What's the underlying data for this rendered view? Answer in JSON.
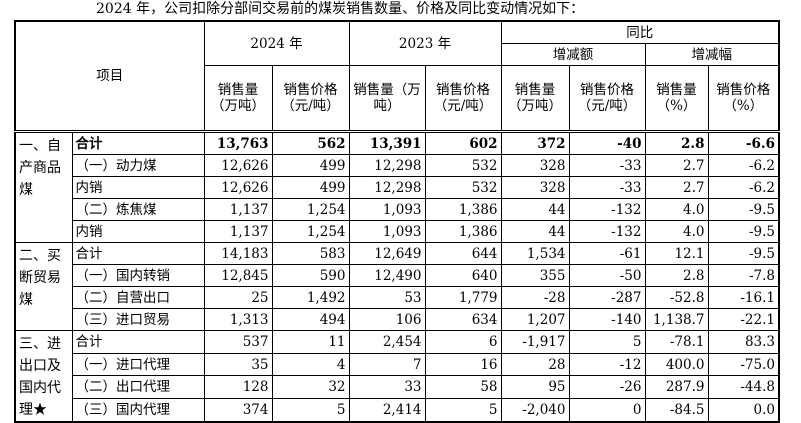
{
  "caption": "2024 年，公司扣除分部间交易前的煤炭销售数量、价格及同比变动情况如下：",
  "header": {
    "item": "项目",
    "y2024": "2024 年",
    "y2023": "2023 年",
    "yoy": "同比",
    "change_amount": "增减额",
    "change_rate": "增减幅",
    "sales_volume": "销售量（万吨）",
    "sales_price": "销售价格（元/吨）",
    "sales_volume_change": "销售量（万吨）",
    "sales_price_change": "销售价格（元/吨）",
    "volume_pct": "销售量（%）",
    "price_pct": "销售价格（%）"
  },
  "groups": [
    {
      "category": "一、自产商品煤",
      "rows": [
        {
          "label": "合计",
          "bold": true,
          "v24": "13,763",
          "p24": "562",
          "v23": "13,391",
          "p23": "602",
          "dv": "372",
          "dp": "-40",
          "rv": "2.8",
          "rp": "-6.6"
        },
        {
          "label": "（一）动力煤",
          "v24": "12,626",
          "p24": "499",
          "v23": "12,298",
          "p23": "532",
          "dv": "328",
          "dp": "-33",
          "rv": "2.7",
          "rp": "-6.2"
        },
        {
          "label": "内销",
          "v24": "12,626",
          "p24": "499",
          "v23": "12,298",
          "p23": "532",
          "dv": "328",
          "dp": "-33",
          "rv": "2.7",
          "rp": "-6.2"
        },
        {
          "label": "（二）炼焦煤",
          "v24": "1,137",
          "p24": "1,254",
          "v23": "1,093",
          "p23": "1,386",
          "dv": "44",
          "dp": "-132",
          "rv": "4.0",
          "rp": "-9.5"
        },
        {
          "label": "内销",
          "v24": "1,137",
          "p24": "1,254",
          "v23": "1,093",
          "p23": "1,386",
          "dv": "44",
          "dp": "-132",
          "rv": "4.0",
          "rp": "-9.5"
        }
      ]
    },
    {
      "category": "二、买断贸易煤",
      "rows": [
        {
          "label": "合计",
          "v24": "14,183",
          "p24": "583",
          "v23": "12,649",
          "p23": "644",
          "dv": "1,534",
          "dp": "-61",
          "rv": "12.1",
          "rp": "-9.5"
        },
        {
          "label": "（一）国内转销",
          "v24": "12,845",
          "p24": "590",
          "v23": "12,490",
          "p23": "640",
          "dv": "355",
          "dp": "-50",
          "rv": "2.8",
          "rp": "-7.8"
        },
        {
          "label": "（二）自营出口",
          "v24": "25",
          "p24": "1,492",
          "v23": "53",
          "p23": "1,779",
          "dv": "-28",
          "dp": "-287",
          "rv": "-52.8",
          "rp": "-16.1"
        },
        {
          "label": "（三）进口贸易",
          "v24": "1,313",
          "p24": "494",
          "v23": "106",
          "p23": "634",
          "dv": "1,207",
          "dp": "-140",
          "rv": "1,138.7",
          "rp": "-22.1"
        }
      ]
    },
    {
      "category": "三、进出口及国内代理★",
      "rows": [
        {
          "label": "合计",
          "v24": "537",
          "p24": "11",
          "v23": "2,454",
          "p23": "6",
          "dv": "-1,917",
          "dp": "5",
          "rv": "-78.1",
          "rp": "83.3"
        },
        {
          "label": "（一）进口代理",
          "v24": "35",
          "p24": "4",
          "v23": "7",
          "p23": "16",
          "dv": "28",
          "dp": "-12",
          "rv": "400.0",
          "rp": "-75.0"
        },
        {
          "label": "（二）出口代理",
          "v24": "128",
          "p24": "32",
          "v23": "33",
          "p23": "58",
          "dv": "95",
          "dp": "-26",
          "rv": "287.9",
          "rp": "-44.8"
        },
        {
          "label": "（三）国内代理",
          "v24": "374",
          "p24": "5",
          "v23": "2,414",
          "p23": "5",
          "dv": "-2,040",
          "dp": "0",
          "rv": "-84.5",
          "rp": "0.0"
        }
      ]
    }
  ]
}
